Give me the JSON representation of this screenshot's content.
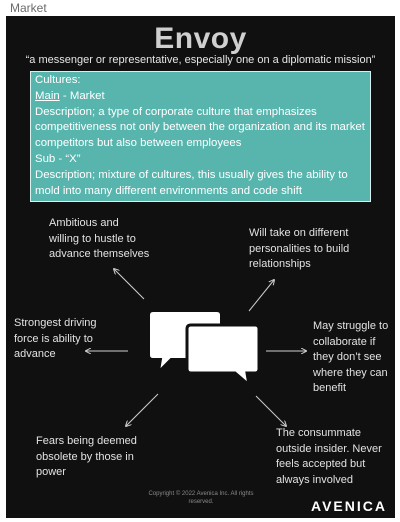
{
  "tag": "Market",
  "title": "Envoy",
  "subtitle": "“a messenger or representative, especially one on a diplomatic mission”",
  "cultures": {
    "heading": "Cultures:",
    "main_label": "Main",
    "main_value": " - Market",
    "main_description": "Description; a type of corporate culture that emphasizes competitiveness not only between the organization and its market competitors but also between employees",
    "sub_label": "Sub - “X”",
    "sub_description": "Description; mixture of cultures, this usually gives the ability to mold into many different environments and code shift"
  },
  "traits": {
    "top_left": [
      "Ambitious and",
      "willing to hustle to",
      "advance themselves"
    ],
    "top_right": [
      "Will take on different",
      "personalities to build",
      "relationships"
    ],
    "middle_left": [
      "Strongest driving",
      "force is ability to",
      "advance"
    ],
    "middle_right": [
      "May struggle to",
      "collaborate if",
      "they don’t see",
      "where they can",
      "benefit"
    ],
    "bottom_left": [
      "Fears being deemed",
      "obsolete by those in",
      "power"
    ],
    "bottom_right": [
      "The consummate",
      "outside insider. Never",
      "feels accepted but",
      "always involved"
    ]
  },
  "icons": {
    "center": "speech-bubbles-icon"
  },
  "footer": {
    "copyright_line1": "Copyright © 2022 Avenica Inc. All rights",
    "copyright_line2": "reserved.",
    "logo": "AVENICA"
  }
}
